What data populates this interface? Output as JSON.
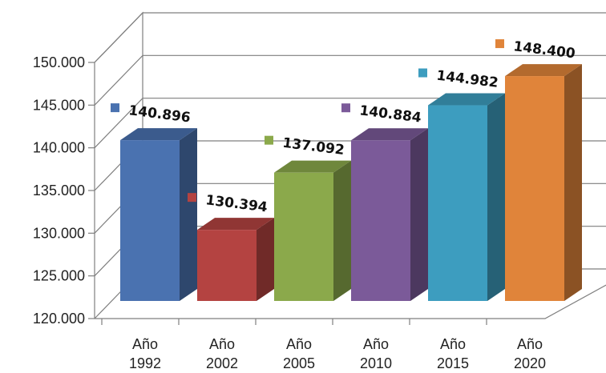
{
  "chart_data": {
    "type": "bar",
    "title": "",
    "xlabel": "",
    "ylabel": "",
    "categories": [
      [
        "Año",
        "1992"
      ],
      [
        "Año",
        "2002"
      ],
      [
        "Año",
        "2005"
      ],
      [
        "Año",
        "2010"
      ],
      [
        "Año",
        "2015"
      ],
      [
        "Año",
        "2020"
      ]
    ],
    "values": [
      140896,
      130394,
      137092,
      140884,
      144982,
      148400
    ],
    "value_labels": [
      "140.896",
      "130.394",
      "137.092",
      "140.884",
      "144.982",
      "148.400"
    ],
    "colors": [
      "#4a72b0",
      "#b44341",
      "#8ba94b",
      "#7b5a99",
      "#3d9dbf",
      "#e0843a"
    ],
    "ylim": [
      120000,
      150000
    ],
    "yticks": [
      120000,
      125000,
      130000,
      135000,
      140000,
      145000,
      150000
    ],
    "ytick_labels": [
      "120.000",
      "125.000",
      "130.000",
      "135.000",
      "140.000",
      "145.000",
      "150.000"
    ],
    "grid": true,
    "legend": "none",
    "style": "3d-column"
  }
}
